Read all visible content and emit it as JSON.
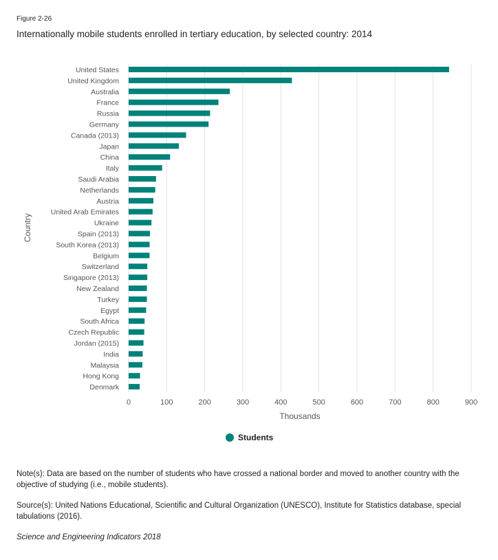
{
  "figure_label": "Figure 2-26",
  "colors": {
    "bar": "#00827a",
    "grid": "#e3e3e3",
    "text": "#555555"
  },
  "chart_data": {
    "type": "bar",
    "orientation": "horizontal",
    "title": "Internationally mobile students enrolled in tertiary education, by selected country: 2014",
    "xlabel": "Thousands",
    "ylabel": "Country",
    "xlim": [
      0,
      900
    ],
    "xticks": [
      0,
      100,
      200,
      300,
      400,
      500,
      600,
      700,
      800,
      900
    ],
    "grid": true,
    "legend_position": "bottom",
    "categories": [
      "United States",
      "United Kingdom",
      "Australia",
      "France",
      "Russia",
      "Germany",
      "Canada (2013)",
      "Japan",
      "China",
      "Italy",
      "Saudi Arabia",
      "Netherlands",
      "Austria",
      "United Arab Emirates",
      "Ukraine",
      "Spain (2013)",
      "South Korea (2013)",
      "Belgium",
      "Switzerland",
      "Singapore (2013)",
      "New Zealand",
      "Turkey",
      "Egypt",
      "South Africa",
      "Czech Republic",
      "Jordan (2015)",
      "India",
      "Malaysia",
      "Hong Kong",
      "Denmark"
    ],
    "series": [
      {
        "name": "Students",
        "values": [
          842,
          429,
          266,
          236,
          214,
          210,
          151,
          132,
          109,
          88,
          72,
          70,
          65,
          63,
          60,
          56,
          55,
          55,
          49,
          49,
          48,
          48,
          46,
          42,
          41,
          39,
          37,
          36,
          30,
          29
        ]
      }
    ]
  },
  "notes": "Note(s): Data are based on the number of students who have crossed a national border and moved to another country with the objective of studying (i.e., mobile students).",
  "source": "Source(s): United Nations Educational, Scientific and Cultural Organization (UNESCO), Institute for Statistics database, special tabulations (2016).",
  "credit": "Science and Engineering Indicators 2018"
}
